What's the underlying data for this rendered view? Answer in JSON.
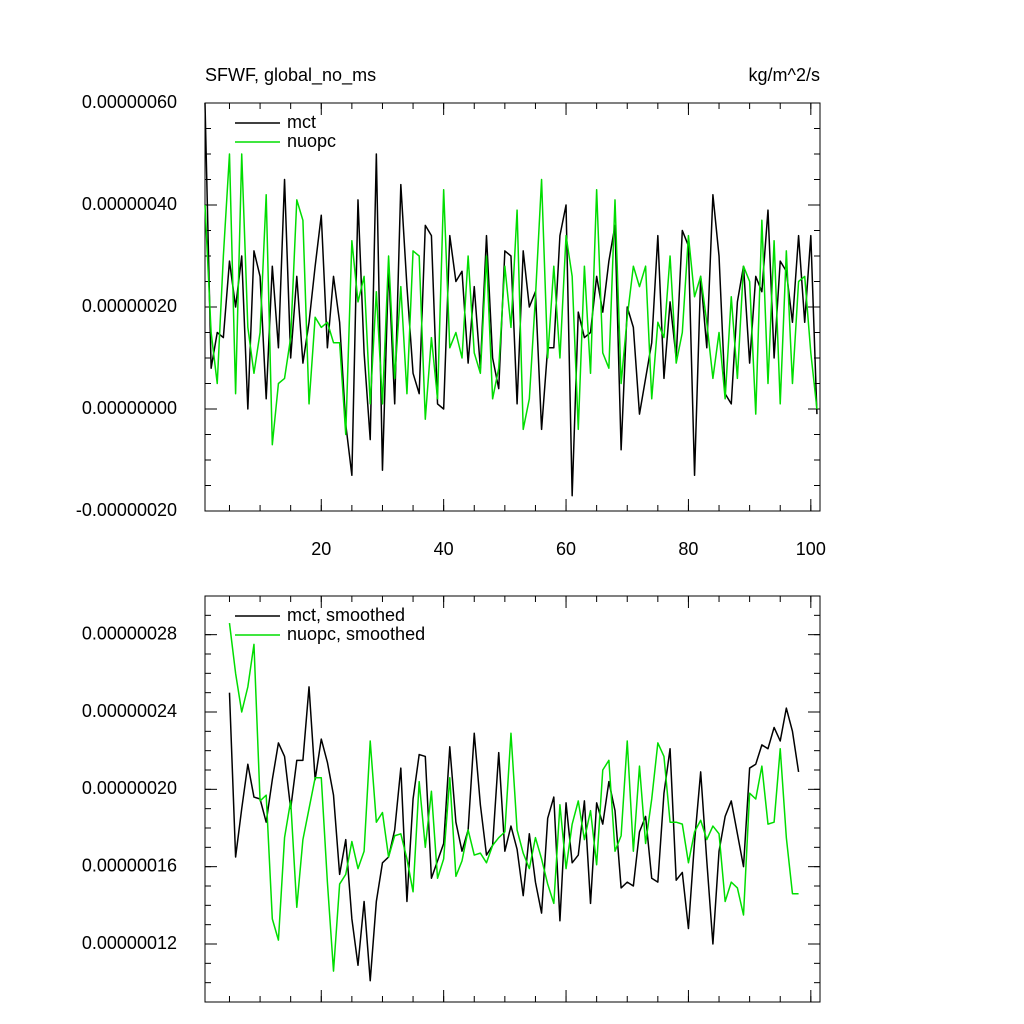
{
  "chart_data": [
    {
      "type": "line",
      "title": "SFWF, global_no_ms",
      "units": "kg/m^2/s",
      "x": [
        1,
        2,
        3,
        4,
        5,
        6,
        7,
        8,
        9,
        10,
        11,
        12,
        13,
        14,
        15,
        16,
        17,
        18,
        19,
        20,
        21,
        22,
        23,
        24,
        25,
        26,
        27,
        28,
        29,
        30,
        31,
        32,
        33,
        34,
        35,
        36,
        37,
        38,
        39,
        40,
        41,
        42,
        43,
        44,
        45,
        46,
        47,
        48,
        49,
        50,
        51,
        52,
        53,
        54,
        55,
        56,
        57,
        58,
        59,
        60,
        61,
        62,
        63,
        64,
        65,
        66,
        67,
        68,
        69,
        70,
        71,
        72,
        73,
        74,
        75,
        76,
        77,
        78,
        79,
        80,
        81,
        82,
        83,
        84,
        85,
        86,
        87,
        88,
        89,
        90,
        91,
        92,
        93,
        94,
        95,
        96,
        97,
        98,
        99,
        100,
        101
      ],
      "series": [
        {
          "name": "mct",
          "color": "#000000",
          "values": [
            6e-07,
            8e-08,
            1.5e-07,
            1.4e-07,
            2.9e-07,
            2e-07,
            3e-07,
            0,
            3.1e-07,
            2.6e-07,
            2e-08,
            2.8e-07,
            1.2e-07,
            4.5e-07,
            1e-07,
            2.6e-07,
            9e-08,
            1.7e-07,
            2.8e-07,
            3.8e-07,
            1.2e-07,
            2.6e-07,
            1.7e-07,
            -3e-08,
            -1.3e-07,
            4.1e-07,
            1.1e-07,
            -6e-08,
            5e-07,
            -1.2e-07,
            2.8e-07,
            1e-08,
            4.4e-07,
            2.4e-07,
            7e-08,
            3e-08,
            3.6e-07,
            3.4e-07,
            1e-08,
            0,
            3.4e-07,
            2.5e-07,
            2.7e-07,
            9e-08,
            2.4e-07,
            8e-08,
            3.4e-07,
            1e-07,
            4e-08,
            3.1e-07,
            3e-07,
            1e-08,
            3.1e-07,
            2e-07,
            2.3e-07,
            -4e-08,
            1.2e-07,
            1.2e-07,
            3.4e-07,
            4e-07,
            -1.7e-07,
            1.9e-07,
            1.4e-07,
            1.5e-07,
            2.6e-07,
            1.9e-07,
            2.9e-07,
            3.6e-07,
            -8e-08,
            2e-07,
            1.6e-07,
            -1e-08,
            6e-08,
            1.3e-07,
            3.4e-07,
            6e-08,
            2.1e-07,
            1e-07,
            3.5e-07,
            3.2e-07,
            -1.3e-07,
            2.6e-07,
            1.2e-07,
            4.2e-07,
            3e-07,
            3e-08,
            1e-08,
            2.1e-07,
            2.8e-07,
            9e-08,
            2.6e-07,
            2.3e-07,
            3.9e-07,
            1e-07,
            2.9e-07,
            2.7e-07,
            1.7e-07,
            3.4e-07,
            1.7e-07,
            3.4e-07,
            -1e-08
          ]
        },
        {
          "name": "nuopc",
          "color": "#00dd00",
          "values": [
            4e-07,
            1.5e-07,
            5e-08,
            3e-07,
            5e-07,
            3e-08,
            5e-07,
            1.6e-07,
            7e-08,
            1.5e-07,
            4.2e-07,
            -7e-08,
            5e-08,
            6e-08,
            1.4e-07,
            4.1e-07,
            3.7e-07,
            1e-08,
            1.8e-07,
            1.6e-07,
            1.7e-07,
            1.3e-07,
            1.3e-07,
            -5e-08,
            3.3e-07,
            2.1e-07,
            2.6e-07,
            1e-08,
            2.3e-07,
            1e-08,
            3e-07,
            6e-08,
            2.4e-07,
            3e-08,
            3.1e-07,
            3e-07,
            -2e-08,
            1.4e-07,
            2e-08,
            4.3e-07,
            1.2e-07,
            1.5e-07,
            1e-07,
            3e-07,
            1.1e-07,
            7e-08,
            3e-07,
            2e-08,
            8e-08,
            2.8e-07,
            1.6e-07,
            3.9e-07,
            -4e-08,
            2e-08,
            2.2e-07,
            4.5e-07,
            1e-07,
            2.8e-07,
            1e-07,
            3.4e-07,
            2.6e-07,
            -4e-08,
            2.8e-07,
            7e-08,
            4.3e-07,
            1.1e-07,
            8e-08,
            4.1e-07,
            5e-08,
            1.8e-07,
            2.8e-07,
            2.4e-07,
            2.8e-07,
            2e-08,
            1.7e-07,
            1.4e-07,
            3e-07,
            9e-08,
            1.5e-07,
            3.4e-07,
            2.2e-07,
            2.6e-07,
            1.7e-07,
            6e-08,
            1.5e-07,
            2e-08,
            2.2e-07,
            6e-08,
            2.8e-07,
            2.5e-07,
            -1e-08,
            3.7e-07,
            5e-08,
            3.3e-07,
            1e-08,
            3.1e-07,
            5e-08,
            2.5e-07,
            2.6e-07,
            1.1e-07,
            0
          ]
        }
      ],
      "xlim": [
        1,
        101.5
      ],
      "xticks": [
        20,
        40,
        60,
        80,
        100
      ],
      "ylim": [
        -2e-07,
        6e-07
      ],
      "yticks": [
        {
          "value": -2e-07,
          "label": "-0.00000020"
        },
        {
          "value": 0,
          "label": "0.00000000"
        },
        {
          "value": 2e-07,
          "label": "0.00000020"
        },
        {
          "value": 4e-07,
          "label": "0.00000040"
        },
        {
          "value": 6e-07,
          "label": "0.00000060"
        }
      ]
    },
    {
      "type": "line",
      "x": [
        5,
        6,
        7,
        8,
        9,
        10,
        11,
        12,
        13,
        14,
        15,
        16,
        17,
        18,
        19,
        20,
        21,
        22,
        23,
        24,
        25,
        26,
        27,
        28,
        29,
        30,
        31,
        32,
        33,
        34,
        35,
        36,
        37,
        38,
        39,
        40,
        41,
        42,
        43,
        44,
        45,
        46,
        47,
        48,
        49,
        50,
        51,
        52,
        53,
        54,
        55,
        56,
        57,
        58,
        59,
        60,
        61,
        62,
        63,
        64,
        65,
        66,
        67,
        68,
        69,
        70,
        71,
        72,
        73,
        74,
        75,
        76,
        77,
        78,
        79,
        80,
        81,
        82,
        83,
        84,
        85,
        86,
        87,
        88,
        89,
        90,
        91,
        92,
        93,
        94,
        95,
        96,
        97,
        98
      ],
      "series": [
        {
          "name": "mct, smoothed",
          "color": "#000000",
          "values": [
            2.5e-07,
            1.65e-07,
            1.9e-07,
            2.13e-07,
            1.96e-07,
            1.95e-07,
            1.83e-07,
            2.05e-07,
            2.24e-07,
            2.17e-07,
            1.9e-07,
            2.15e-07,
            2.15e-07,
            2.53e-07,
            2.05e-07,
            2.26e-07,
            2.14e-07,
            1.97e-07,
            1.56e-07,
            1.74e-07,
            1.33e-07,
            1.09e-07,
            1.42e-07,
            1.01e-07,
            1.42e-07,
            1.62e-07,
            1.65e-07,
            1.79e-07,
            2.11e-07,
            1.42e-07,
            1.95e-07,
            2.18e-07,
            2.17e-07,
            1.54e-07,
            1.63e-07,
            1.72e-07,
            2.22e-07,
            1.83e-07,
            1.68e-07,
            1.79e-07,
            2.29e-07,
            1.92e-07,
            1.66e-07,
            1.71e-07,
            2.19e-07,
            1.68e-07,
            1.81e-07,
            1.69e-07,
            1.45e-07,
            1.77e-07,
            1.52e-07,
            1.36e-07,
            1.85e-07,
            1.96e-07,
            1.32e-07,
            1.93e-07,
            1.62e-07,
            1.66e-07,
            1.94e-07,
            1.41e-07,
            1.93e-07,
            1.82e-07,
            2.04e-07,
            1.89e-07,
            1.49e-07,
            1.52e-07,
            1.5e-07,
            1.78e-07,
            1.86e-07,
            1.54e-07,
            1.52e-07,
            1.98e-07,
            2.21e-07,
            1.53e-07,
            1.57e-07,
            1.28e-07,
            1.73e-07,
            2.09e-07,
            1.63e-07,
            1.2e-07,
            1.68e-07,
            1.86e-07,
            1.94e-07,
            1.77e-07,
            1.6e-07,
            2.11e-07,
            2.13e-07,
            2.23e-07,
            2.21e-07,
            2.32e-07,
            2.25e-07,
            2.42e-07,
            2.3e-07,
            2.09e-07
          ]
        },
        {
          "name": "nuopc, smoothed",
          "color": "#00dd00",
          "values": [
            2.86e-07,
            2.6e-07,
            2.4e-07,
            2.53e-07,
            2.75e-07,
            1.94e-07,
            1.97e-07,
            1.33e-07,
            1.22e-07,
            1.75e-07,
            1.94e-07,
            1.39e-07,
            1.74e-07,
            1.9e-07,
            2.06e-07,
            2.06e-07,
            1.52e-07,
            1.06e-07,
            1.51e-07,
            1.56e-07,
            1.73e-07,
            1.59e-07,
            1.68e-07,
            2.25e-07,
            1.83e-07,
            1.88e-07,
            1.65e-07,
            1.76e-07,
            1.77e-07,
            1.64e-07,
            1.47e-07,
            2.04e-07,
            1.7e-07,
            1.99e-07,
            1.54e-07,
            1.64e-07,
            2.06e-07,
            1.55e-07,
            1.63e-07,
            1.79e-07,
            1.66e-07,
            1.67e-07,
            1.62e-07,
            1.71e-07,
            1.75e-07,
            1.78e-07,
            2.29e-07,
            1.79e-07,
            1.67e-07,
            1.59e-07,
            1.75e-07,
            1.64e-07,
            1.51e-07,
            1.41e-07,
            1.92e-07,
            1.59e-07,
            1.82e-07,
            1.94e-07,
            1.74e-07,
            1.89e-07,
            1.61e-07,
            2.1e-07,
            2.15e-07,
            1.68e-07,
            1.76e-07,
            2.25e-07,
            1.68e-07,
            2.12e-07,
            1.72e-07,
            1.95e-07,
            2.24e-07,
            2.17e-07,
            1.83e-07,
            1.83e-07,
            1.82e-07,
            1.62e-07,
            1.78e-07,
            1.84e-07,
            1.74e-07,
            1.81e-07,
            1.77e-07,
            1.42e-07,
            1.52e-07,
            1.49e-07,
            1.35e-07,
            1.98e-07,
            1.95e-07,
            2.12e-07,
            1.82e-07,
            1.83e-07,
            2.21e-07,
            1.75e-07,
            1.46e-07,
            1.46e-07
          ]
        }
      ],
      "xlim": [
        1,
        101.5
      ],
      "xticks": [
        20,
        40,
        60,
        80,
        100
      ],
      "xtick_labels": false,
      "ylim": [
        9e-08,
        3e-07
      ],
      "yticks": [
        {
          "value": 1.2e-07,
          "label": "0.00000012"
        },
        {
          "value": 1.6e-07,
          "label": "0.00000016"
        },
        {
          "value": 2e-07,
          "label": "0.00000020"
        },
        {
          "value": 2.4e-07,
          "label": "0.00000024"
        },
        {
          "value": 2.8e-07,
          "label": "0.00000028"
        }
      ]
    }
  ]
}
